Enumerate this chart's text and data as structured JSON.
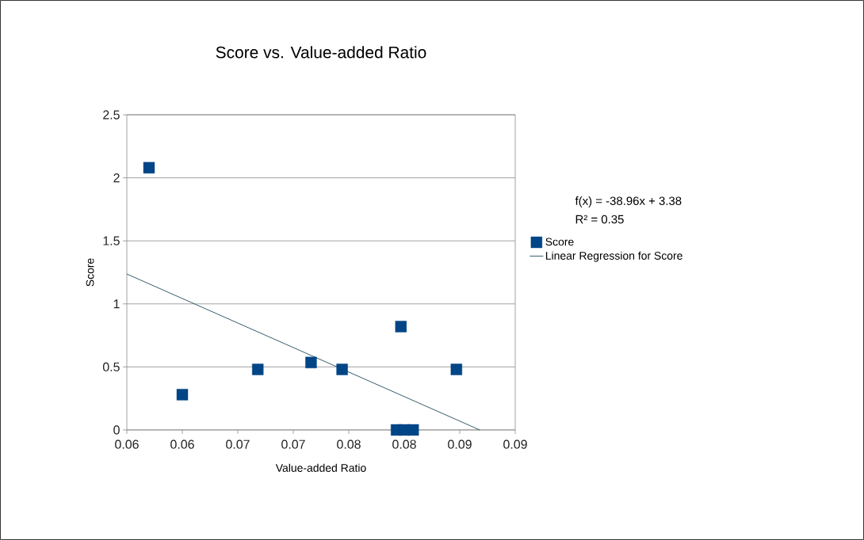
{
  "chart_data": {
    "type": "scatter",
    "title": "Score vs. Value-added Ratio",
    "xlabel": "Value-added Ratio",
    "ylabel": "Score",
    "annotations": [
      "f(x) = -38.96x + 3.38",
      "R² = 0.35"
    ],
    "series": [
      {
        "name": "Score",
        "color": "#004586",
        "marker": "square",
        "x": [
          0.057,
          0.06,
          0.0668,
          0.0716,
          0.0744,
          0.0797,
          0.0847,
          0.0793,
          0.08,
          0.0808
        ],
        "values": [
          2.08,
          0.28,
          0.48,
          0.535,
          0.48,
          0.82,
          0.48,
          0,
          0,
          0
        ]
      },
      {
        "name": "Linear Regression for Score",
        "type": "line",
        "color": "#1f4a5a",
        "marker": "none",
        "line_style": "solid",
        "x": [
          0.055,
          0.0868
        ],
        "values": [
          1.237,
          0
        ]
      }
    ],
    "xlim": [
      0.055,
      0.09
    ],
    "xticks": [
      {
        "value": 0.055,
        "label": "0.06"
      },
      {
        "value": 0.06,
        "label": "0.06"
      },
      {
        "value": 0.065,
        "label": "0.07"
      },
      {
        "value": 0.07,
        "label": "0.07"
      },
      {
        "value": 0.075,
        "label": "0.08"
      },
      {
        "value": 0.08,
        "label": "0.08"
      },
      {
        "value": 0.085,
        "label": "0.09"
      },
      {
        "value": 0.09,
        "label": "0.09"
      }
    ],
    "ylim": [
      0,
      2.5
    ],
    "yticks": [
      0,
      0.5,
      1,
      1.5,
      2,
      2.5
    ],
    "grid": "y",
    "legend": "right"
  }
}
